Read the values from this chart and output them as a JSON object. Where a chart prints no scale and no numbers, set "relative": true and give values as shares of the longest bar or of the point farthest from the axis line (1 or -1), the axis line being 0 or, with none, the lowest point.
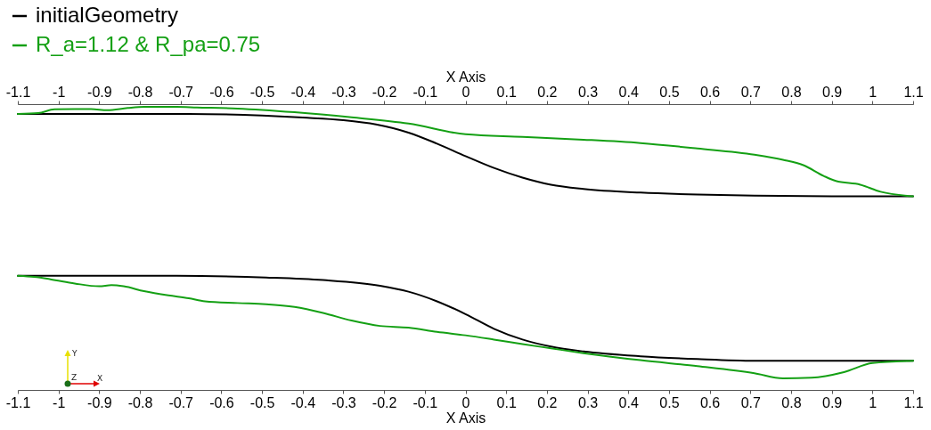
{
  "chart_data": {
    "type": "line",
    "relative": true,
    "xlabel": "X Axis",
    "x2label": "X Axis",
    "xlim": [
      -1.1,
      1.1
    ],
    "xticks": [
      -1.1,
      -1,
      -0.9,
      -0.8,
      -0.7,
      -0.6,
      -0.5,
      -0.4,
      -0.3,
      -0.2,
      -0.1,
      0,
      0.1,
      0.2,
      0.3,
      0.4,
      0.5,
      0.6,
      0.7,
      0.8,
      0.9,
      1,
      1.1
    ],
    "x2lim": [
      -1.1,
      1.1
    ],
    "x2ticks": [
      -1.1,
      -1,
      -0.9,
      -0.8,
      -0.7,
      -0.6,
      -0.5,
      -0.4,
      -0.3,
      -0.2,
      -0.1,
      0,
      0.1,
      0.2,
      0.3,
      0.4,
      0.5,
      0.6,
      0.7,
      0.8,
      0.9,
      1,
      1.1
    ],
    "grid": false,
    "legend": "top left",
    "annotations": [
      "Y",
      "Z",
      "X"
    ],
    "series": [
      {
        "name": "initialGeometry",
        "color": "#000000",
        "x": [
          -1.1,
          -0.68,
          -0.5,
          -0.4,
          -0.3,
          -0.22,
          -0.14,
          -0.07,
          0,
          0.07,
          0.14,
          0.21,
          0.29,
          0.43,
          0.57,
          0.71,
          0.9,
          1.1
        ],
        "values": [
          0.975,
          0.975,
          0.969,
          0.962,
          0.953,
          0.938,
          0.909,
          0.87,
          0.826,
          0.784,
          0.75,
          0.725,
          0.71,
          0.697,
          0.69,
          0.686,
          0.684,
          0.684
        ]
      },
      {
        "color": "#000000",
        "x": [
          -1.1,
          -0.71,
          -0.49,
          -0.35,
          -0.21,
          -0.14,
          -0.07,
          0,
          0.07,
          0.14,
          0.21,
          0.29,
          0.43,
          0.57,
          0.71,
          1.1
        ],
        "values": [
          0.403,
          0.403,
          0.397,
          0.388,
          0.368,
          0.347,
          0.313,
          0.268,
          0.216,
          0.178,
          0.153,
          0.136,
          0.119,
          0.109,
          0.103,
          0.103
        ]
      },
      {
        "name": "R_a=1.12 & R_pa=0.75",
        "color": "#14a014",
        "x": [
          -1.1,
          -1.05,
          -1.01,
          -0.96,
          -0.92,
          -0.88,
          -0.83,
          -0.79,
          -0.71,
          -0.66,
          -0.56,
          -0.42,
          -0.28,
          -0.14,
          0,
          0.14,
          0.29,
          0.43,
          0.57,
          0.71,
          0.78,
          0.83,
          0.88,
          0.91,
          0.97,
          1.02,
          1.1
        ],
        "values": [
          0.975,
          0.978,
          0.991,
          0.992,
          0.992,
          0.988,
          0.996,
          1,
          1,
          0.998,
          0.994,
          0.981,
          0.963,
          0.941,
          0.903,
          0.894,
          0.884,
          0.872,
          0.853,
          0.831,
          0.813,
          0.794,
          0.756,
          0.738,
          0.725,
          0.7,
          0.684
        ]
      },
      {
        "color": "#14a014",
        "x": [
          -1.1,
          -1.06,
          -1.02,
          -0.96,
          -0.9,
          -0.87,
          -0.84,
          -0.79,
          -0.73,
          -0.68,
          -0.64,
          -0.56,
          -0.49,
          -0.42,
          -0.35,
          -0.28,
          -0.21,
          -0.14,
          -0.07,
          0,
          0.07,
          0.14,
          0.21,
          0.29,
          0.43,
          0.57,
          0.71,
          0.78,
          0.85,
          0.93,
          1,
          1.1
        ],
        "values": [
          0.403,
          0.399,
          0.391,
          0.376,
          0.366,
          0.37,
          0.366,
          0.349,
          0.334,
          0.324,
          0.313,
          0.307,
          0.303,
          0.293,
          0.272,
          0.245,
          0.226,
          0.22,
          0.205,
          0.193,
          0.178,
          0.162,
          0.147,
          0.13,
          0.105,
          0.084,
          0.059,
          0.041,
          0.043,
          0.063,
          0.095,
          0.103
        ]
      }
    ]
  }
}
